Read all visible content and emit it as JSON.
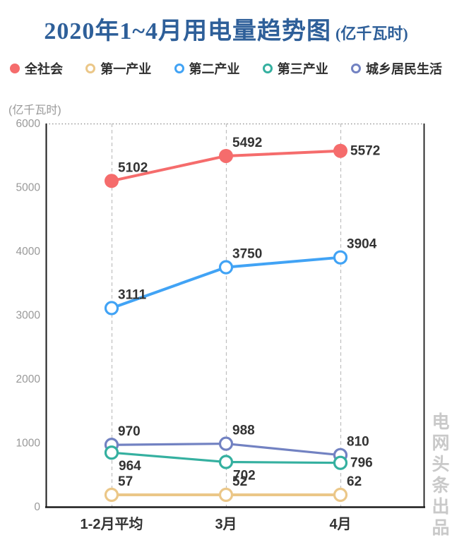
{
  "title": {
    "text": "2020年1~4月用电量趋势图",
    "suffix": "(亿千瓦时)",
    "color": "#2e5f99"
  },
  "watermark": "电网头条出品",
  "colors": {
    "axis_line": "#1a1a1a",
    "tick_label": "#999999",
    "gridline": "#bfbfbf",
    "data_label": "#333333",
    "x_label": "#333333",
    "watermark": "#c9c9c9"
  },
  "chart_data": {
    "type": "line",
    "title": "2020年1~4月用电量趋势图 (亿千瓦时)",
    "unit_label": "(亿千瓦时)",
    "categories": [
      "1-2月平均",
      "3月",
      "4月"
    ],
    "series": [
      {
        "name": "全社会",
        "color": "#f56c6c",
        "marker": "filled",
        "values": [
          5102,
          5492,
          5572
        ],
        "label_positions": [
          "above",
          "above",
          "right"
        ]
      },
      {
        "name": "第一产业",
        "color": "#ebc788",
        "marker": "hollow",
        "values": [
          57,
          52,
          62
        ],
        "label_positions": [
          "above",
          "above",
          "above"
        ]
      },
      {
        "name": "第二产业",
        "color": "#41a3f5",
        "marker": "hollow",
        "values": [
          3111,
          3750,
          3904
        ],
        "label_positions": [
          "above",
          "above",
          "above"
        ]
      },
      {
        "name": "第三产业",
        "color": "#35b0a0",
        "marker": "hollow",
        "values": [
          964,
          702,
          796
        ],
        "label_positions": [
          "below",
          "below",
          "right"
        ]
      },
      {
        "name": "城乡居民生活",
        "color": "#7282c2",
        "marker": "hollow",
        "values": [
          970,
          988,
          810
        ],
        "label_positions": [
          "above",
          "above",
          "above"
        ]
      }
    ],
    "xlabel": "",
    "ylabel": "(亿千瓦时)",
    "ylim": [
      0,
      6000
    ],
    "y_ticks": [
      0,
      1000,
      2000,
      3000,
      4000,
      5000,
      6000
    ],
    "grid": {
      "vertical_dashed": true,
      "horizontal": false,
      "top_border_dotted": true
    },
    "legend_position": "top"
  }
}
